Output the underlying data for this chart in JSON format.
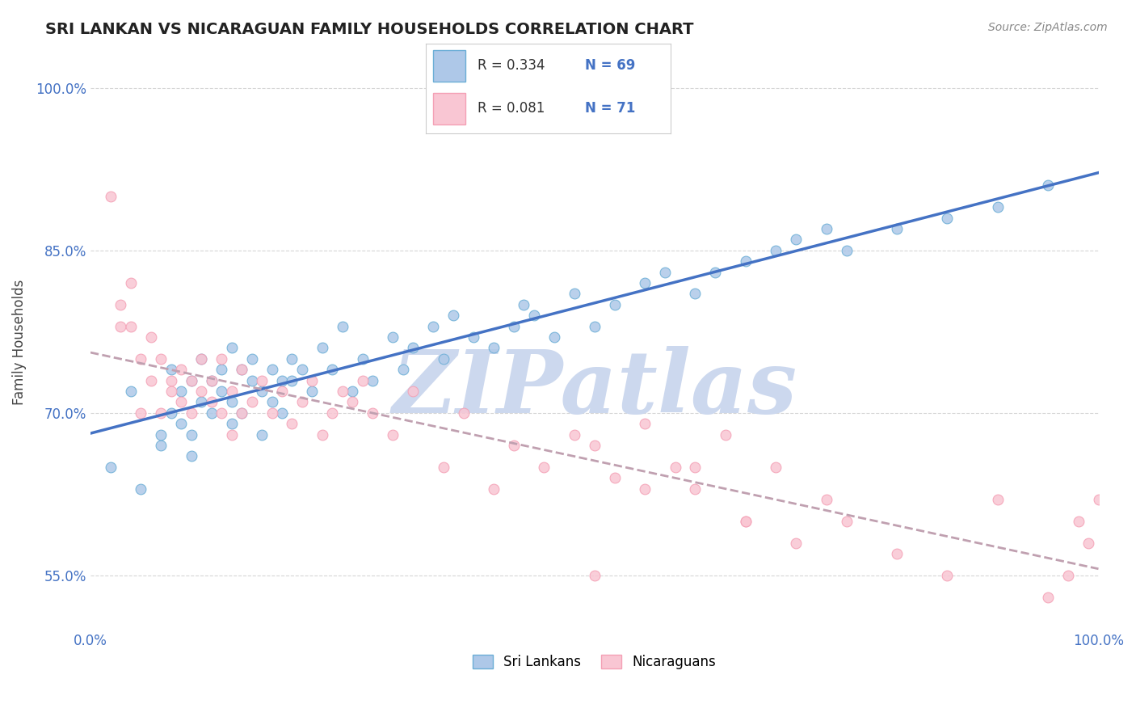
{
  "title": "SRI LANKAN VS NICARAGUAN FAMILY HOUSEHOLDS CORRELATION CHART",
  "source_text": "Source: ZipAtlas.com",
  "ylabel": "Family Households",
  "y_ticks": [
    0.55,
    0.7,
    0.85,
    1.0
  ],
  "y_tick_labels": [
    "55.0%",
    "70.0%",
    "85.0%",
    "100.0%"
  ],
  "x_tick_labels": [
    "0.0%",
    "100.0%"
  ],
  "legend_r_blue": "R = 0.334",
  "legend_n_blue": "N = 69",
  "legend_r_pink": "R = 0.081",
  "legend_n_pink": "N = 71",
  "sri_lankan_edge": "#6baed6",
  "sri_lankan_fill": "#aec8e8",
  "nicaraguan_edge": "#f4a0b5",
  "nicaraguan_fill": "#f9c6d3",
  "trend_blue": "#4472c4",
  "trend_pink": "#c0a0b0",
  "watermark_color": "#ccd8ee",
  "watermark_text": "ZIPatlas",
  "legend_blue_fill": "#aec8e8",
  "legend_blue_edge": "#6baed6",
  "legend_pink_fill": "#f9c6d3",
  "legend_pink_edge": "#f4a0b5",
  "n_sri": 69,
  "n_nic": 71,
  "sri_lankans_x": [
    0.02,
    0.04,
    0.05,
    0.07,
    0.07,
    0.08,
    0.08,
    0.09,
    0.09,
    0.1,
    0.1,
    0.1,
    0.11,
    0.11,
    0.12,
    0.12,
    0.13,
    0.13,
    0.14,
    0.14,
    0.14,
    0.15,
    0.15,
    0.16,
    0.16,
    0.17,
    0.17,
    0.18,
    0.18,
    0.19,
    0.19,
    0.2,
    0.2,
    0.21,
    0.22,
    0.23,
    0.24,
    0.25,
    0.26,
    0.27,
    0.28,
    0.3,
    0.31,
    0.32,
    0.34,
    0.35,
    0.36,
    0.38,
    0.4,
    0.42,
    0.43,
    0.44,
    0.46,
    0.48,
    0.5,
    0.52,
    0.55,
    0.57,
    0.6,
    0.62,
    0.65,
    0.68,
    0.7,
    0.73,
    0.75,
    0.8,
    0.85,
    0.9,
    0.95
  ],
  "sri_lankans_y": [
    0.65,
    0.72,
    0.63,
    0.67,
    0.68,
    0.7,
    0.74,
    0.69,
    0.72,
    0.73,
    0.68,
    0.66,
    0.71,
    0.75,
    0.7,
    0.73,
    0.72,
    0.74,
    0.71,
    0.76,
    0.69,
    0.74,
    0.7,
    0.73,
    0.75,
    0.72,
    0.68,
    0.74,
    0.71,
    0.73,
    0.7,
    0.75,
    0.73,
    0.74,
    0.72,
    0.76,
    0.74,
    0.78,
    0.72,
    0.75,
    0.73,
    0.77,
    0.74,
    0.76,
    0.78,
    0.75,
    0.79,
    0.77,
    0.76,
    0.78,
    0.8,
    0.79,
    0.77,
    0.81,
    0.78,
    0.8,
    0.82,
    0.83,
    0.81,
    0.83,
    0.84,
    0.85,
    0.86,
    0.87,
    0.85,
    0.87,
    0.88,
    0.89,
    0.91
  ],
  "nicaraguans_x": [
    0.02,
    0.03,
    0.03,
    0.04,
    0.04,
    0.05,
    0.05,
    0.06,
    0.06,
    0.07,
    0.07,
    0.08,
    0.08,
    0.09,
    0.09,
    0.1,
    0.1,
    0.11,
    0.11,
    0.12,
    0.12,
    0.13,
    0.13,
    0.14,
    0.14,
    0.15,
    0.15,
    0.16,
    0.17,
    0.18,
    0.19,
    0.2,
    0.21,
    0.22,
    0.23,
    0.24,
    0.25,
    0.26,
    0.27,
    0.28,
    0.3,
    0.32,
    0.35,
    0.37,
    0.4,
    0.42,
    0.45,
    0.48,
    0.5,
    0.52,
    0.55,
    0.58,
    0.6,
    0.63,
    0.65,
    0.68,
    0.7,
    0.73,
    0.75,
    0.8,
    0.85,
    0.9,
    0.95,
    0.97,
    0.98,
    0.99,
    1.0,
    0.5,
    0.55,
    0.6,
    0.65
  ],
  "nicaraguans_y": [
    0.9,
    0.78,
    0.8,
    0.78,
    0.82,
    0.7,
    0.75,
    0.73,
    0.77,
    0.7,
    0.75,
    0.73,
    0.72,
    0.74,
    0.71,
    0.73,
    0.7,
    0.72,
    0.75,
    0.71,
    0.73,
    0.7,
    0.75,
    0.68,
    0.72,
    0.7,
    0.74,
    0.71,
    0.73,
    0.7,
    0.72,
    0.69,
    0.71,
    0.73,
    0.68,
    0.7,
    0.72,
    0.71,
    0.73,
    0.7,
    0.68,
    0.72,
    0.65,
    0.7,
    0.63,
    0.67,
    0.65,
    0.68,
    0.67,
    0.64,
    0.69,
    0.65,
    0.63,
    0.68,
    0.6,
    0.65,
    0.58,
    0.62,
    0.6,
    0.57,
    0.55,
    0.62,
    0.53,
    0.55,
    0.6,
    0.58,
    0.62,
    0.55,
    0.63,
    0.65,
    0.6
  ]
}
